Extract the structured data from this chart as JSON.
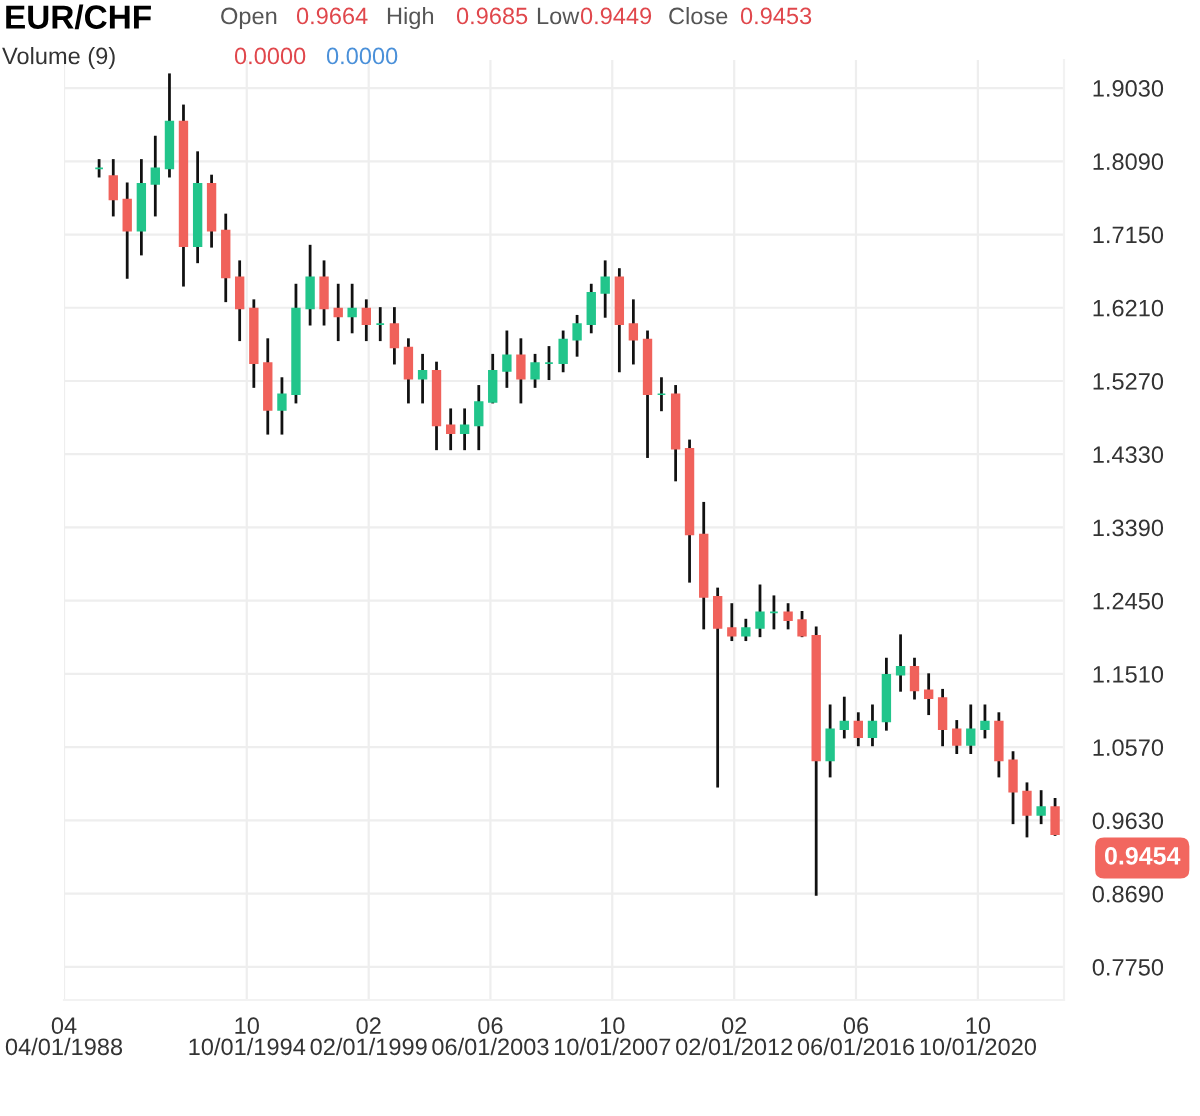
{
  "chart_data": {
    "type": "candlestick",
    "title": "EUR/CHF",
    "annotations": [
      "Open",
      "0.9664",
      "High",
      "0.9685",
      "Low",
      "0.9449",
      "Close",
      "0.9453",
      "Volume (9)",
      "0.0000",
      "0.0000",
      "0.9454"
    ],
    "x": [
      "1989-07",
      "1990-01",
      "1990-07",
      "1991-01",
      "1991-07",
      "1992-01",
      "1992-07",
      "1993-01",
      "1993-07",
      "1994-01",
      "1994-07",
      "1995-01",
      "1995-07",
      "1996-01",
      "1996-07",
      "1997-01",
      "1997-07",
      "1998-01",
      "1998-07",
      "1999-01",
      "1999-07",
      "2000-01",
      "2000-07",
      "2001-01",
      "2001-07",
      "2002-01",
      "2002-07",
      "2003-01",
      "2003-07",
      "2004-01",
      "2004-07",
      "2005-01",
      "2005-07",
      "2006-01",
      "2006-07",
      "2007-01",
      "2007-07",
      "2008-01",
      "2008-07",
      "2009-01",
      "2009-07",
      "2010-01",
      "2010-07",
      "2011-01",
      "2011-07",
      "2012-01",
      "2012-07",
      "2013-01",
      "2013-07",
      "2014-01",
      "2014-07",
      "2015-01",
      "2015-07",
      "2016-01",
      "2016-07",
      "2017-01",
      "2017-07",
      "2018-01",
      "2018-07",
      "2019-01",
      "2019-07",
      "2020-01",
      "2020-07",
      "2021-01",
      "2021-07",
      "2022-01",
      "2022-07",
      "2023-01",
      "2023-07"
    ],
    "ohlc": [
      [
        1.8,
        1.81,
        1.79,
        1.8
      ],
      [
        1.79,
        1.81,
        1.74,
        1.76
      ],
      [
        1.76,
        1.78,
        1.66,
        1.72
      ],
      [
        1.72,
        1.81,
        1.69,
        1.78
      ],
      [
        1.78,
        1.84,
        1.74,
        1.8
      ],
      [
        1.8,
        1.92,
        1.79,
        1.86
      ],
      [
        1.86,
        1.88,
        1.65,
        1.7
      ],
      [
        1.7,
        1.82,
        1.68,
        1.78
      ],
      [
        1.78,
        1.79,
        1.7,
        1.72
      ],
      [
        1.72,
        1.74,
        1.63,
        1.66
      ],
      [
        1.66,
        1.68,
        1.58,
        1.62
      ],
      [
        1.62,
        1.63,
        1.52,
        1.55
      ],
      [
        1.55,
        1.58,
        1.46,
        1.49
      ],
      [
        1.49,
        1.53,
        1.46,
        1.51
      ],
      [
        1.51,
        1.65,
        1.5,
        1.62
      ],
      [
        1.62,
        1.7,
        1.6,
        1.66
      ],
      [
        1.66,
        1.68,
        1.6,
        1.62
      ],
      [
        1.62,
        1.65,
        1.58,
        1.61
      ],
      [
        1.61,
        1.65,
        1.59,
        1.62
      ],
      [
        1.62,
        1.63,
        1.58,
        1.6
      ],
      [
        1.6,
        1.62,
        1.58,
        1.6
      ],
      [
        1.6,
        1.62,
        1.55,
        1.57
      ],
      [
        1.57,
        1.58,
        1.5,
        1.53
      ],
      [
        1.53,
        1.56,
        1.5,
        1.54
      ],
      [
        1.54,
        1.55,
        1.44,
        1.47
      ],
      [
        1.47,
        1.49,
        1.44,
        1.46
      ],
      [
        1.46,
        1.49,
        1.44,
        1.47
      ],
      [
        1.47,
        1.52,
        1.44,
        1.5
      ],
      [
        1.5,
        1.56,
        1.5,
        1.54
      ],
      [
        1.54,
        1.59,
        1.52,
        1.56
      ],
      [
        1.56,
        1.58,
        1.5,
        1.53
      ],
      [
        1.53,
        1.56,
        1.52,
        1.55
      ],
      [
        1.55,
        1.57,
        1.53,
        1.55
      ],
      [
        1.55,
        1.59,
        1.54,
        1.58
      ],
      [
        1.58,
        1.61,
        1.56,
        1.6
      ],
      [
        1.6,
        1.65,
        1.59,
        1.64
      ],
      [
        1.64,
        1.68,
        1.61,
        1.66
      ],
      [
        1.66,
        1.67,
        1.54,
        1.6
      ],
      [
        1.6,
        1.63,
        1.55,
        1.58
      ],
      [
        1.58,
        1.59,
        1.43,
        1.51
      ],
      [
        1.51,
        1.53,
        1.49,
        1.51
      ],
      [
        1.51,
        1.52,
        1.4,
        1.44
      ],
      [
        1.44,
        1.45,
        1.27,
        1.33
      ],
      [
        1.33,
        1.37,
        1.21,
        1.25
      ],
      [
        1.25,
        1.26,
        1.007,
        1.21
      ],
      [
        1.21,
        1.24,
        1.195,
        1.2
      ],
      [
        1.2,
        1.22,
        1.195,
        1.21
      ],
      [
        1.21,
        1.264,
        1.2,
        1.23
      ],
      [
        1.23,
        1.25,
        1.21,
        1.23
      ],
      [
        1.23,
        1.24,
        1.21,
        1.22
      ],
      [
        1.22,
        1.23,
        1.2,
        1.2
      ],
      [
        1.2,
        1.21,
        0.868,
        1.04
      ],
      [
        1.04,
        1.11,
        1.02,
        1.08
      ],
      [
        1.08,
        1.12,
        1.07,
        1.09
      ],
      [
        1.09,
        1.1,
        1.06,
        1.07
      ],
      [
        1.07,
        1.11,
        1.06,
        1.09
      ],
      [
        1.09,
        1.17,
        1.08,
        1.15
      ],
      [
        1.15,
        1.2,
        1.13,
        1.16
      ],
      [
        1.16,
        1.17,
        1.12,
        1.13
      ],
      [
        1.13,
        1.15,
        1.1,
        1.12
      ],
      [
        1.12,
        1.13,
        1.06,
        1.08
      ],
      [
        1.08,
        1.09,
        1.05,
        1.06
      ],
      [
        1.06,
        1.11,
        1.05,
        1.08
      ],
      [
        1.08,
        1.11,
        1.07,
        1.09
      ],
      [
        1.09,
        1.1,
        1.02,
        1.04
      ],
      [
        1.04,
        1.05,
        0.96,
        1.0
      ],
      [
        1.0,
        1.01,
        0.943,
        0.97
      ],
      [
        0.97,
        1.0,
        0.96,
        0.98
      ],
      [
        0.98,
        0.99,
        0.945,
        0.9453
      ]
    ],
    "colors": [
      "#22c58b",
      "#f0625b",
      "#f0625b",
      "#22c58b",
      "#22c58b",
      "#22c58b",
      "#f0625b",
      "#22c58b",
      "#f0625b",
      "#f0625b",
      "#f0625b",
      "#f0625b",
      "#f0625b",
      "#22c58b",
      "#22c58b",
      "#22c58b",
      "#f0625b",
      "#f0625b",
      "#22c58b",
      "#f0625b",
      "#22c58b",
      "#f0625b",
      "#f0625b",
      "#22c58b",
      "#f0625b",
      "#f0625b",
      "#22c58b",
      "#22c58b",
      "#22c58b",
      "#22c58b",
      "#f0625b",
      "#22c58b",
      "#22c58b",
      "#22c58b",
      "#22c58b",
      "#22c58b",
      "#22c58b",
      "#f0625b",
      "#f0625b",
      "#f0625b",
      "#22c58b",
      "#f0625b",
      "#f0625b",
      "#f0625b",
      "#f0625b",
      "#f0625b",
      "#22c58b",
      "#22c58b",
      "#22c58b",
      "#f0625b",
      "#f0625b",
      "#f0625b",
      "#22c58b",
      "#22c58b",
      "#f0625b",
      "#22c58b",
      "#22c58b",
      "#22c58b",
      "#f0625b",
      "#f0625b",
      "#f0625b",
      "#f0625b",
      "#22c58b",
      "#22c58b",
      "#f0625b",
      "#f0625b",
      "#f0625b",
      "#22c58b",
      "#f0625b"
    ],
    "xlim": [
      "1988-04-01",
      "2023-10-25"
    ],
    "xticks": [
      {
        "value": "1988-04-01",
        "label": "04\n04/01/1988"
      },
      {
        "value": "1994-10-01",
        "label": "10\n10/01/1994"
      },
      {
        "value": "1999-02-01",
        "label": "02\n02/01/1999"
      },
      {
        "value": "2003-06-01",
        "label": "06\n06/01/2003"
      },
      {
        "value": "2007-10-01",
        "label": "10\n10/01/2007"
      },
      {
        "value": "2012-02-01",
        "label": "02\n02/01/2012"
      },
      {
        "value": "2016-06-01",
        "label": "06\n06/01/2016"
      },
      {
        "value": "2020-10-01",
        "label": "10\n10/01/2020"
      }
    ],
    "ylim": [
      0.7325,
      1.939
    ],
    "yticks": [
      {
        "value": 0.775,
        "label": "0.7750"
      },
      {
        "value": 0.869,
        "label": "0.8690"
      },
      {
        "value": 0.963,
        "label": "0.9630"
      },
      {
        "value": 1.057,
        "label": "1.0570"
      },
      {
        "value": 1.151,
        "label": "1.1510"
      },
      {
        "value": 1.245,
        "label": "1.2450"
      },
      {
        "value": 1.339,
        "label": "1.3390"
      },
      {
        "value": 1.433,
        "label": "1.4330"
      },
      {
        "value": 1.527,
        "label": "1.5270"
      },
      {
        "value": 1.621,
        "label": "1.6210"
      },
      {
        "value": 1.715,
        "label": "1.7150"
      },
      {
        "value": 1.809,
        "label": "1.8090"
      },
      {
        "value": 1.903,
        "label": "1.9030"
      }
    ],
    "grid": true
  }
}
